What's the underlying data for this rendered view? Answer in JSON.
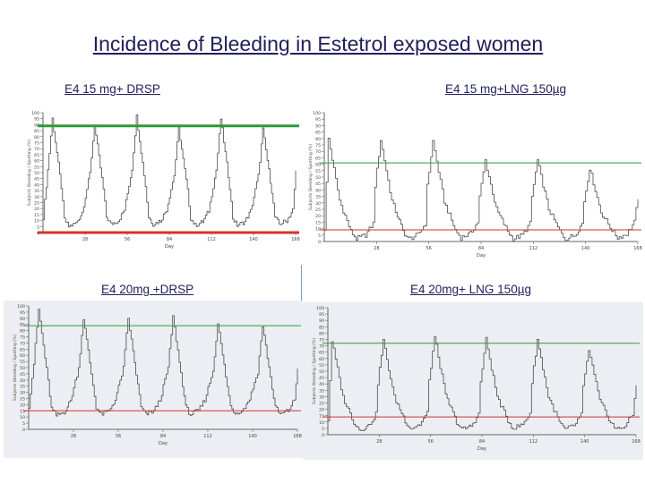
{
  "title": "Incidence of Bleeding in Estetrol exposed women",
  "colors": {
    "upper_line": "#2e9a35",
    "lower_line": "#d2332a",
    "trace": "#4a4a4a"
  },
  "chart_data": [
    {
      "type": "line",
      "label": "E4 15 mg+  DRSP",
      "xticks": [
        28,
        56,
        84,
        112,
        140,
        168
      ],
      "yticks": [
        0,
        5,
        10,
        15,
        20,
        25,
        30,
        35,
        40,
        45,
        50,
        55,
        60,
        65,
        70,
        75,
        80,
        85,
        90,
        95,
        100
      ],
      "xlabel": "Day",
      "ylabel": "Subjects Bleeding / Spotting (%)",
      "xlim": [
        0,
        168
      ],
      "ylim": [
        0,
        100
      ],
      "upper_line": 89,
      "lower_line": 0,
      "peaks": [
        {
          "x": 6,
          "y": 95
        },
        {
          "x": 34,
          "y": 90
        },
        {
          "x": 62,
          "y": 97
        },
        {
          "x": 90,
          "y": 87
        },
        {
          "x": 118,
          "y": 95
        },
        {
          "x": 146,
          "y": 86
        }
      ],
      "troughs": [
        {
          "x": 17,
          "y": 5
        },
        {
          "x": 45,
          "y": 7
        },
        {
          "x": 73,
          "y": 7
        },
        {
          "x": 101,
          "y": 6
        },
        {
          "x": 129,
          "y": 6
        },
        {
          "x": 157,
          "y": 7
        }
      ]
    },
    {
      "type": "line",
      "label": "E4 15 mg+LNG 150µg",
      "xticks": [
        28,
        56,
        84,
        112,
        140,
        168
      ],
      "yticks": [
        0,
        5,
        10,
        15,
        20,
        25,
        30,
        35,
        40,
        45,
        50,
        55,
        60,
        65,
        70,
        75,
        80,
        85,
        90,
        95,
        100
      ],
      "xlabel": "Day",
      "ylabel": "Subjects Bleeding / Spotting (%)",
      "xlim": [
        0,
        168
      ],
      "ylim": [
        0,
        100
      ],
      "upper_line": 61,
      "lower_line": 9,
      "peaks": [
        {
          "x": 2,
          "y": 80
        },
        {
          "x": 30,
          "y": 79
        },
        {
          "x": 58,
          "y": 78
        },
        {
          "x": 86,
          "y": 63
        },
        {
          "x": 114,
          "y": 63
        },
        {
          "x": 142,
          "y": 57
        }
      ],
      "troughs": [
        {
          "x": 17,
          "y": 2
        },
        {
          "x": 45,
          "y": 2
        },
        {
          "x": 73,
          "y": 3
        },
        {
          "x": 101,
          "y": 2
        },
        {
          "x": 129,
          "y": 2
        },
        {
          "x": 157,
          "y": 3
        }
      ]
    },
    {
      "type": "line",
      "label": "E4 20mg +DRSP",
      "xticks": [
        28,
        56,
        84,
        112,
        140,
        168
      ],
      "yticks": [
        0,
        5,
        10,
        15,
        20,
        25,
        30,
        35,
        40,
        45,
        50,
        55,
        60,
        65,
        70,
        75,
        80,
        85,
        90,
        95,
        100
      ],
      "xlabel": "Day",
      "ylabel": "Subjects Bleeding / Spotting (%)",
      "xlim": [
        0,
        168
      ],
      "ylim": [
        0,
        100
      ],
      "upper_line": 84,
      "lower_line": 15,
      "peaks": [
        {
          "x": 6,
          "y": 97
        },
        {
          "x": 34,
          "y": 90
        },
        {
          "x": 62,
          "y": 90
        },
        {
          "x": 90,
          "y": 91
        },
        {
          "x": 118,
          "y": 86
        },
        {
          "x": 146,
          "y": 84
        }
      ],
      "troughs": [
        {
          "x": 17,
          "y": 11
        },
        {
          "x": 45,
          "y": 12
        },
        {
          "x": 73,
          "y": 12
        },
        {
          "x": 101,
          "y": 12
        },
        {
          "x": 129,
          "y": 13
        },
        {
          "x": 157,
          "y": 12
        }
      ]
    },
    {
      "type": "line",
      "label": "E4 20mg+ LNG 150µg",
      "xticks": [
        28,
        56,
        84,
        112,
        140,
        168
      ],
      "yticks": [
        0,
        5,
        10,
        15,
        20,
        25,
        30,
        35,
        40,
        45,
        50,
        55,
        60,
        65,
        70,
        75,
        80,
        85,
        90,
        95,
        100
      ],
      "xlabel": "Day",
      "ylabel": "Subjects Bleeding / Spotting (%)",
      "xlim": [
        0,
        168
      ],
      "ylim": [
        0,
        100
      ],
      "upper_line": 72,
      "lower_line": 14,
      "peaks": [
        {
          "x": 2,
          "y": 74
        },
        {
          "x": 30,
          "y": 74
        },
        {
          "x": 58,
          "y": 77
        },
        {
          "x": 86,
          "y": 75
        },
        {
          "x": 114,
          "y": 75
        },
        {
          "x": 142,
          "y": 67
        }
      ],
      "troughs": [
        {
          "x": 17,
          "y": 4
        },
        {
          "x": 45,
          "y": 5
        },
        {
          "x": 73,
          "y": 4
        },
        {
          "x": 101,
          "y": 5
        },
        {
          "x": 129,
          "y": 4
        },
        {
          "x": 157,
          "y": 4
        }
      ]
    }
  ]
}
